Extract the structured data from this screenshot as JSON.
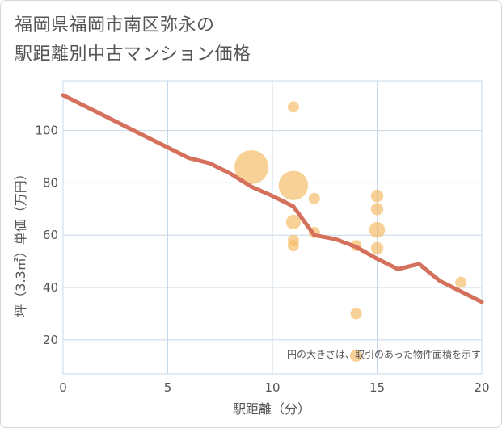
{
  "chart_data": {
    "type": "scatter",
    "title_lines": [
      "福岡県福岡市南区弥永の",
      "駅距離別中古マンション価格"
    ],
    "xlabel": "駅距離（分）",
    "ylabel": "坪（3.3㎡）単価（万円）",
    "xlim": [
      0,
      20
    ],
    "ylim": [
      7,
      119
    ],
    "xticks": [
      0,
      5,
      10,
      15,
      20
    ],
    "yticks": [
      20,
      40,
      60,
      80,
      100
    ],
    "grid": true,
    "note": "円の大きさは、取引のあった物件面積を示す",
    "colors": {
      "bubble": "#f5b95f",
      "line": "#d4705c",
      "grid": "#c8d8e8",
      "text": "#555555"
    },
    "scatter": [
      {
        "x": 9,
        "y": 86,
        "size": 3.0
      },
      {
        "x": 11,
        "y": 109,
        "size": 1.0
      },
      {
        "x": 11,
        "y": 79,
        "size": 2.6
      },
      {
        "x": 11,
        "y": 65,
        "size": 1.3
      },
      {
        "x": 11,
        "y": 58,
        "size": 1.0
      },
      {
        "x": 11,
        "y": 56,
        "size": 1.0
      },
      {
        "x": 12,
        "y": 74,
        "size": 1.0
      },
      {
        "x": 12,
        "y": 61,
        "size": 1.0
      },
      {
        "x": 14,
        "y": 56,
        "size": 1.0
      },
      {
        "x": 14,
        "y": 30,
        "size": 1.0
      },
      {
        "x": 14,
        "y": 14,
        "size": 1.1
      },
      {
        "x": 15,
        "y": 75,
        "size": 1.1
      },
      {
        "x": 15,
        "y": 70,
        "size": 1.1
      },
      {
        "x": 15,
        "y": 62,
        "size": 1.4
      },
      {
        "x": 15,
        "y": 55,
        "size": 1.1
      },
      {
        "x": 19,
        "y": 42,
        "size": 1.0
      }
    ],
    "trend_line": {
      "x": [
        0,
        1,
        2,
        3,
        4,
        5,
        6,
        7,
        8,
        9,
        10,
        11,
        12,
        13,
        14,
        15,
        16,
        17,
        18,
        19,
        20
      ],
      "y": [
        113.5,
        109.5,
        105.5,
        101.5,
        97.5,
        93.5,
        89.5,
        87.5,
        83.5,
        78.5,
        75,
        71,
        60,
        58.5,
        55.5,
        51,
        47,
        49,
        42.5,
        38.5,
        34.5
      ]
    }
  }
}
